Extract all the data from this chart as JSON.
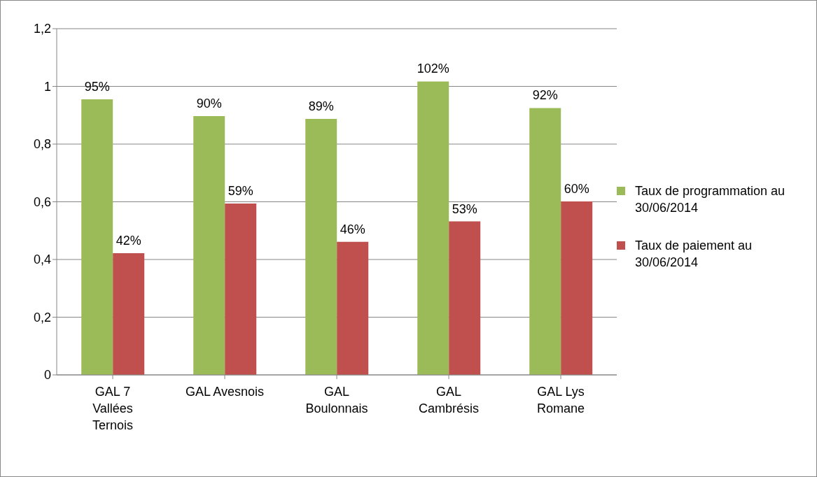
{
  "chart_data": {
    "type": "bar",
    "categories": [
      "GAL 7 Vallées Ternois",
      "GAL Avesnois",
      "GAL Boulonnais",
      "GAL Cambrésis",
      "GAL Lys Romane"
    ],
    "series": [
      {
        "name": "Taux de programmation au 30/06/2014",
        "color": "#9bbb59",
        "values": [
          0.955,
          0.897,
          0.887,
          1.017,
          0.925
        ],
        "value_labels": [
          "95%",
          "90%",
          "89%",
          "102%",
          "92%"
        ]
      },
      {
        "name": "Taux de paiement au 30/06/2014",
        "color": "#c0504d",
        "values": [
          0.422,
          0.594,
          0.461,
          0.532,
          0.601
        ],
        "value_labels": [
          "42%",
          "59%",
          "46%",
          "53%",
          "60%"
        ]
      }
    ],
    "ylim": [
      0,
      1.2
    ],
    "yticks": [
      0,
      {
        "value": 0.2,
        "label": "0,2"
      },
      {
        "value": 0.4,
        "label": "0,4"
      },
      {
        "value": 0.6,
        "label": "0,6"
      },
      {
        "value": 0.8,
        "label": "0,8"
      },
      1,
      {
        "value": 1.2,
        "label": "1,2"
      }
    ],
    "grid": "y",
    "legend": "right"
  }
}
